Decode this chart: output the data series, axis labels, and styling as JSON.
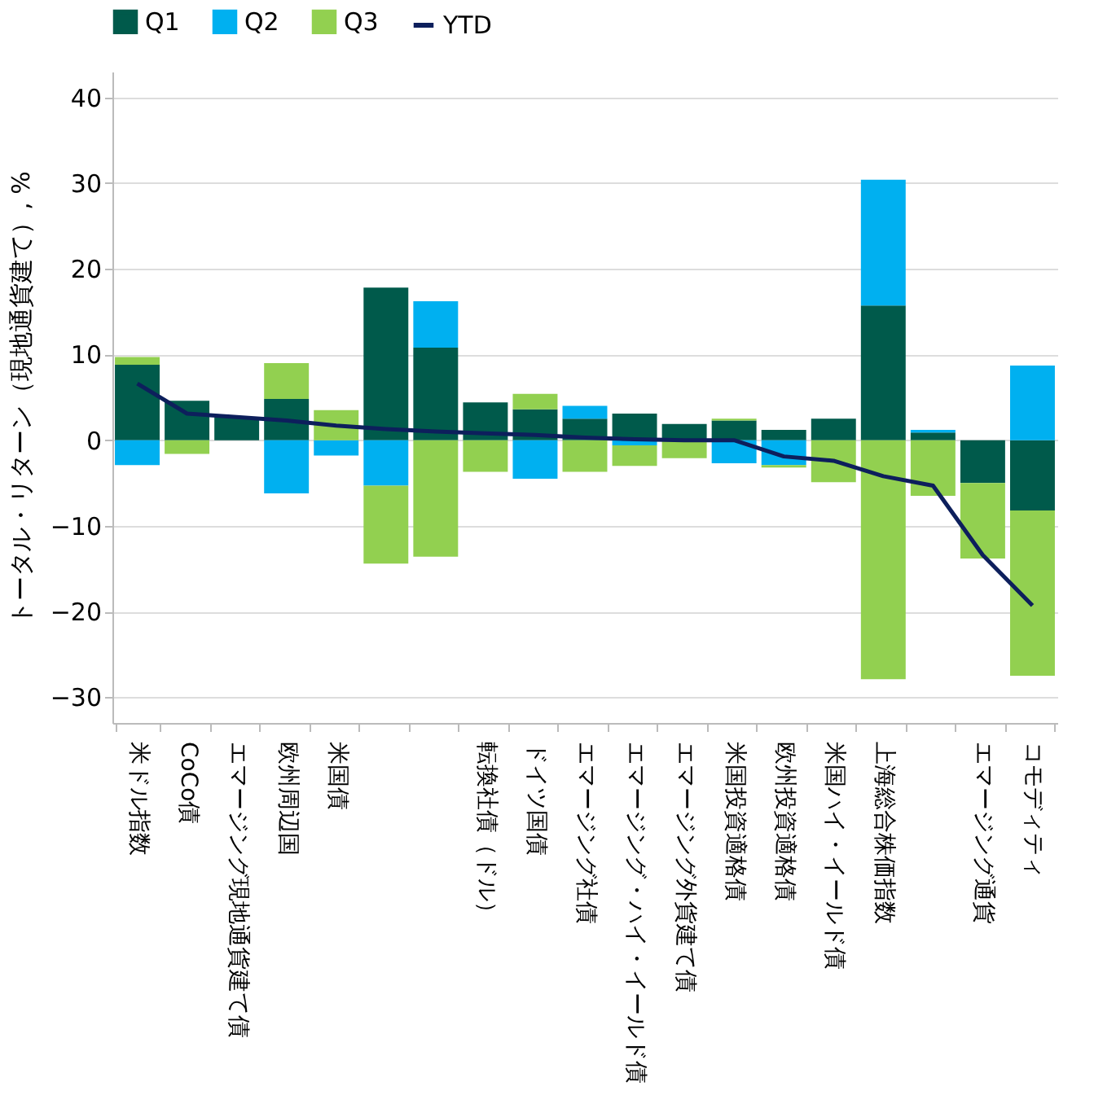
{
  "chart_data": {
    "type": "bar",
    "stacked": true,
    "ylabel": "トータル・リターン（現地通貨建て）, %",
    "categories": [
      "米ドル指数",
      "CoCo債",
      "エマージング現地通貨建て債",
      "欧州周辺国",
      "米国債",
      null,
      null,
      "転換社債（ドル）",
      "ドイツ国債",
      "エマージング社債",
      "エマージング・ハイ・イールド債",
      "エマージング外貨建て債",
      "米国投資適格債",
      "欧州投資適格債",
      "米国ハイ・イールド債",
      "上海総合株価指数",
      null,
      "エマージング通貨",
      "コモディティ"
    ],
    "series": [
      {
        "name": "Q1",
        "color": "#005a4b",
        "values": [
          8.8,
          4.6,
          2.7,
          4.8,
          0,
          17.8,
          10.8,
          4.4,
          3.6,
          2.5,
          3.1,
          1.9,
          2.3,
          1.2,
          2.5,
          15.7,
          0.9,
          -5.0,
          -8.2
        ]
      },
      {
        "name": "Q2",
        "color": "#00b0f0",
        "values": [
          -2.9,
          0,
          0,
          -6.2,
          -1.8,
          -5.3,
          5.4,
          0,
          -4.5,
          1.5,
          -0.6,
          0,
          -2.7,
          -2.9,
          0,
          14.7,
          0.3,
          0,
          8.7
        ]
      },
      {
        "name": "Q3",
        "color": "#92d050",
        "values": [
          0.9,
          -1.6,
          0,
          4.2,
          3.5,
          -9.1,
          -13.6,
          -3.7,
          1.8,
          -3.7,
          -2.4,
          -2.1,
          0.2,
          -0.3,
          -4.9,
          -27.9,
          -6.5,
          -8.8,
          -19.3
        ]
      },
      {
        "name": "YTD",
        "type": "line",
        "color": "#0d1f5c",
        "values": [
          6.6,
          3.1,
          2.7,
          2.3,
          1.7,
          1.3,
          1.0,
          0.8,
          0.6,
          0.3,
          0.1,
          0.0,
          0.0,
          -1.9,
          -2.4,
          -4.2,
          -5.3,
          -13.4,
          -19.3
        ]
      }
    ],
    "ylim": [
      -33,
      43
    ],
    "yticks": [
      -30,
      -20,
      -10,
      0,
      10,
      20,
      30,
      40
    ],
    "grid": "y",
    "legend": "top"
  }
}
